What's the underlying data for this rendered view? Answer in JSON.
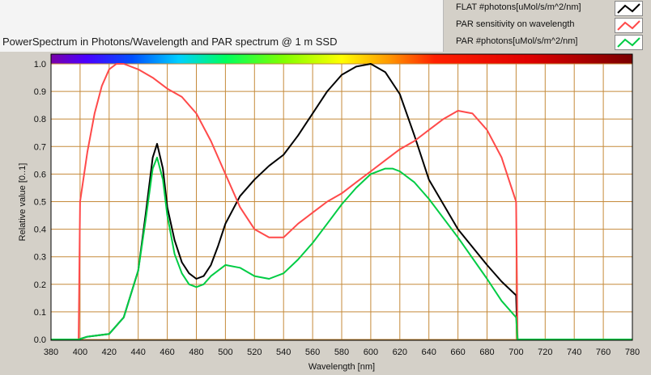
{
  "legend": [
    {
      "label": "FLAT #photons[uMol/s/m^2/nm]",
      "color": "#000000"
    },
    {
      "label": "PAR sensitivity on wavelength",
      "color": "#ff4a4a"
    },
    {
      "label": "PAR #photons[uMol/s/m^2/nm]",
      "color": "#00cc44"
    }
  ],
  "chart_data": {
    "type": "line",
    "title": "PowerSpectrum in Photons/Wavelength and PAR spectrum @ 1 m SSD",
    "xlabel": "Wavelength [nm]",
    "ylabel": "Relative value [0..1]",
    "xlim": [
      380,
      780
    ],
    "ylim": [
      0,
      1.05
    ],
    "xticks": [
      380,
      400,
      420,
      440,
      460,
      480,
      500,
      520,
      540,
      560,
      580,
      600,
      620,
      640,
      660,
      680,
      700,
      720,
      740,
      760,
      780
    ],
    "yticks": [
      0.0,
      0.1,
      0.2,
      0.3,
      0.4,
      0.5,
      0.6,
      0.7,
      0.8,
      0.9,
      1.0
    ],
    "grid": true,
    "legend_position": "top-right",
    "colors": {
      "plot_bg": "#ffffff",
      "grid": "#c58a3a",
      "frame": "#000000"
    },
    "series": [
      {
        "name": "FLAT #photons[uMol/s/m^2/nm]",
        "color": "#000000",
        "x": [
          380,
          399,
          405,
          420,
          430,
          440,
          445,
          450,
          453,
          457,
          460,
          465,
          470,
          475,
          480,
          485,
          490,
          495,
          500,
          510,
          520,
          530,
          540,
          550,
          560,
          570,
          580,
          590,
          600,
          610,
          620,
          630,
          640,
          660,
          680,
          690,
          700,
          701,
          780
        ],
        "y": [
          0.0,
          0.0,
          0.01,
          0.02,
          0.08,
          0.25,
          0.45,
          0.66,
          0.71,
          0.62,
          0.48,
          0.36,
          0.28,
          0.24,
          0.22,
          0.23,
          0.27,
          0.34,
          0.42,
          0.52,
          0.58,
          0.63,
          0.67,
          0.74,
          0.82,
          0.9,
          0.96,
          0.99,
          1.0,
          0.97,
          0.89,
          0.74,
          0.58,
          0.4,
          0.27,
          0.21,
          0.16,
          0.0,
          0.0
        ]
      },
      {
        "name": "PAR sensitivity on wavelength",
        "color": "#ff4a4a",
        "x": [
          380,
          399,
          400,
          405,
          410,
          415,
          420,
          425,
          430,
          440,
          450,
          460,
          470,
          480,
          490,
          500,
          510,
          520,
          530,
          540,
          550,
          560,
          570,
          580,
          590,
          600,
          610,
          620,
          630,
          640,
          650,
          660,
          670,
          680,
          690,
          695,
          700,
          701,
          780
        ],
        "y": [
          0.0,
          0.0,
          0.5,
          0.68,
          0.82,
          0.92,
          0.98,
          1.0,
          1.0,
          0.98,
          0.95,
          0.91,
          0.88,
          0.82,
          0.72,
          0.6,
          0.48,
          0.4,
          0.37,
          0.37,
          0.42,
          0.46,
          0.5,
          0.53,
          0.57,
          0.61,
          0.65,
          0.69,
          0.72,
          0.76,
          0.8,
          0.83,
          0.82,
          0.76,
          0.66,
          0.58,
          0.5,
          0.0,
          0.0
        ]
      },
      {
        "name": "PAR #photons[uMol/s/m^2/nm]",
        "color": "#00cc44",
        "x": [
          380,
          399,
          405,
          420,
          430,
          440,
          445,
          450,
          453,
          457,
          460,
          465,
          470,
          475,
          480,
          485,
          490,
          500,
          510,
          520,
          530,
          540,
          550,
          560,
          570,
          580,
          590,
          600,
          610,
          615,
          620,
          630,
          640,
          660,
          680,
          690,
          700,
          701,
          780
        ],
        "y": [
          0.0,
          0.0,
          0.01,
          0.02,
          0.08,
          0.25,
          0.43,
          0.62,
          0.66,
          0.58,
          0.45,
          0.31,
          0.24,
          0.2,
          0.19,
          0.2,
          0.23,
          0.27,
          0.26,
          0.23,
          0.22,
          0.24,
          0.29,
          0.35,
          0.42,
          0.49,
          0.55,
          0.6,
          0.62,
          0.62,
          0.61,
          0.57,
          0.51,
          0.37,
          0.22,
          0.14,
          0.08,
          0.0,
          0.0
        ]
      }
    ]
  }
}
